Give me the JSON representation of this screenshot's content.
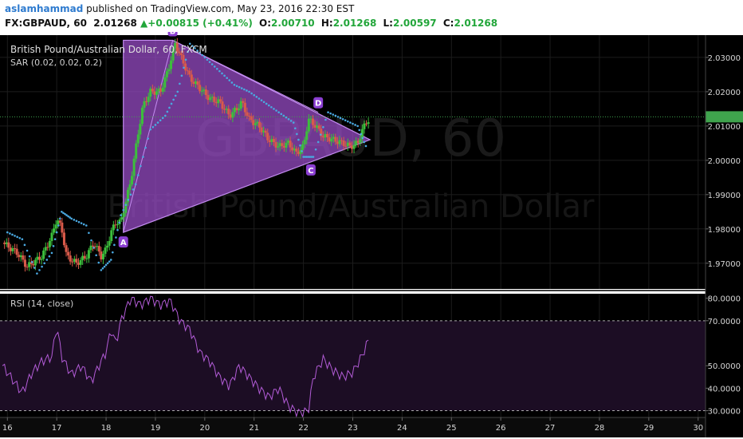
{
  "header": {
    "author": "aslamhammad",
    "published_text": " published on TradingView.com, May 23, 2016 22:30 EST",
    "symbol": "FX:GBPAUD, 60",
    "last": "2.01268",
    "change": "+0.00815 (+0.41%)",
    "o_label": "O:",
    "o_value": "2.00710",
    "h_label": "H:",
    "h_value": "2.01268",
    "l_label": "L:",
    "l_value": "2.00597",
    "c_label": "C:",
    "c_value": "2.01268"
  },
  "chart_data": {
    "type": "candlestick",
    "instrument_label": "British Pound/Australian Dollar, 60, FXCM",
    "sar_label": "SAR (0.02, 0.02, 0.2)",
    "watermark_symbol": "GBPAUD, 60",
    "watermark_name": "British Pound/Australian Dollar",
    "last_price_line": 2.01268,
    "price_axis": {
      "ylim": [
        1.9625,
        2.0365
      ],
      "ticks": [
        "2.03000",
        "2.02000",
        "2.01000",
        "2.00000",
        "1.99000",
        "1.98000",
        "1.97000"
      ]
    },
    "x_axis": {
      "xlim": [
        15.85,
        30.15
      ],
      "ticks": [
        "16",
        "17",
        "18",
        "19",
        "20",
        "21",
        "22",
        "23",
        "24",
        "25",
        "26",
        "27",
        "28",
        "29",
        "30"
      ]
    },
    "price_path": [
      [
        15.9,
        1.976
      ],
      [
        16.2,
        1.973
      ],
      [
        16.4,
        1.969
      ],
      [
        16.7,
        1.972
      ],
      [
        16.9,
        1.978
      ],
      [
        17.0,
        1.983
      ],
      [
        17.1,
        1.98
      ],
      [
        17.2,
        1.972
      ],
      [
        17.4,
        1.97
      ],
      [
        17.6,
        1.972
      ],
      [
        17.75,
        1.976
      ],
      [
        17.9,
        1.972
      ],
      [
        18.0,
        1.974
      ],
      [
        18.1,
        1.979
      ],
      [
        18.2,
        1.982
      ],
      [
        18.3,
        1.982
      ],
      [
        18.5,
        1.994
      ],
      [
        18.65,
        2.008
      ],
      [
        18.75,
        2.016
      ],
      [
        18.9,
        2.02
      ],
      [
        19.1,
        2.02
      ],
      [
        19.25,
        2.026
      ],
      [
        19.4,
        2.034
      ],
      [
        19.55,
        2.029
      ],
      [
        19.7,
        2.024
      ],
      [
        19.9,
        2.021
      ],
      [
        20.1,
        2.018
      ],
      [
        20.3,
        2.017
      ],
      [
        20.5,
        2.013
      ],
      [
        20.65,
        2.015
      ],
      [
        20.75,
        2.017
      ],
      [
        20.9,
        2.012
      ],
      [
        21.1,
        2.01
      ],
      [
        21.3,
        2.006
      ],
      [
        21.5,
        2.004
      ],
      [
        21.7,
        2.005
      ],
      [
        21.85,
        2.002
      ],
      [
        22.0,
        2.004
      ],
      [
        22.1,
        2.012
      ],
      [
        22.25,
        2.01
      ],
      [
        22.4,
        2.007
      ],
      [
        22.6,
        2.006
      ],
      [
        22.8,
        2.005
      ],
      [
        22.95,
        2.004
      ],
      [
        23.1,
        2.005
      ],
      [
        23.2,
        2.009
      ],
      [
        23.3,
        2.012
      ],
      [
        23.35,
        2.011
      ]
    ],
    "sar_points": [
      [
        16.0,
        1.979
      ],
      [
        16.3,
        1.977
      ],
      [
        16.6,
        1.967
      ],
      [
        16.9,
        1.973
      ],
      [
        17.1,
        1.985
      ],
      [
        17.3,
        1.983
      ],
      [
        17.6,
        1.981
      ],
      [
        17.9,
        1.968
      ],
      [
        18.1,
        1.971
      ],
      [
        18.3,
        1.984
      ],
      [
        18.6,
        1.993
      ],
      [
        18.9,
        2.009
      ],
      [
        19.2,
        2.013
      ],
      [
        19.45,
        2.02
      ],
      [
        19.7,
        2.034
      ],
      [
        20.0,
        2.03
      ],
      [
        20.3,
        2.026
      ],
      [
        20.6,
        2.022
      ],
      [
        20.9,
        2.02
      ],
      [
        21.2,
        2.017
      ],
      [
        21.5,
        2.014
      ],
      [
        21.8,
        2.011
      ],
      [
        22.0,
        2.001
      ],
      [
        22.2,
        2.001
      ],
      [
        22.5,
        2.014
      ],
      [
        22.8,
        2.012
      ],
      [
        23.1,
        2.01
      ],
      [
        23.3,
        2.003
      ]
    ],
    "pattern_points": [
      {
        "label": "A",
        "x": 18.35,
        "y": 1.979
      },
      {
        "label": "B",
        "x": 19.35,
        "y": 2.035
      },
      {
        "label": "C",
        "x": 22.15,
        "y": 2.0
      },
      {
        "label": "D",
        "x": 22.3,
        "y": 2.014
      }
    ],
    "pattern_shape": [
      [
        18.35,
        1.979
      ],
      [
        18.35,
        2.035
      ],
      [
        19.35,
        2.035
      ],
      [
        23.35,
        2.006
      ]
    ],
    "rsi_label": "RSI (14, close)",
    "rsi_axis": {
      "ylim": [
        27,
        82
      ],
      "ticks": [
        "80.0000",
        "70.0000",
        "50.0000",
        "40.0000",
        "30.0000"
      ]
    },
    "rsi_bands": [
      30,
      70
    ],
    "rsi_path": [
      [
        15.9,
        50
      ],
      [
        16.1,
        44
      ],
      [
        16.3,
        38
      ],
      [
        16.5,
        47
      ],
      [
        16.7,
        52
      ],
      [
        16.9,
        54
      ],
      [
        17.0,
        68
      ],
      [
        17.1,
        54
      ],
      [
        17.3,
        46
      ],
      [
        17.5,
        50
      ],
      [
        17.7,
        43
      ],
      [
        17.9,
        52
      ],
      [
        18.0,
        56
      ],
      [
        18.1,
        66
      ],
      [
        18.2,
        60
      ],
      [
        18.3,
        70
      ],
      [
        18.5,
        80
      ],
      [
        18.7,
        77
      ],
      [
        18.9,
        80
      ],
      [
        19.1,
        77
      ],
      [
        19.3,
        79
      ],
      [
        19.5,
        70
      ],
      [
        19.7,
        66
      ],
      [
        19.9,
        56
      ],
      [
        20.1,
        52
      ],
      [
        20.3,
        45
      ],
      [
        20.5,
        41
      ],
      [
        20.7,
        50
      ],
      [
        20.9,
        45
      ],
      [
        21.1,
        40
      ],
      [
        21.3,
        36
      ],
      [
        21.5,
        40
      ],
      [
        21.7,
        32
      ],
      [
        21.9,
        29
      ],
      [
        22.1,
        30
      ],
      [
        22.2,
        45
      ],
      [
        22.4,
        53
      ],
      [
        22.6,
        48
      ],
      [
        22.8,
        45
      ],
      [
        23.0,
        47
      ],
      [
        23.2,
        55
      ],
      [
        23.35,
        63
      ]
    ]
  },
  "colors": {
    "background": "#000000",
    "grid": "#1c1c1c",
    "candle_up": "#3cbf3c",
    "candle_down": "#d95a4a",
    "pattern_fill": "#9b4dca",
    "pattern_stroke": "#c38bf0",
    "sar_dot": "#4aa8e0",
    "last_line": "#3fa34d",
    "rsi_line": "#b25bd6",
    "rsi_band_fill": "#1c0d24",
    "axis_text": "#d7d7d7",
    "green_text": "#22a63a",
    "blue_text": "#2e7bcf"
  }
}
